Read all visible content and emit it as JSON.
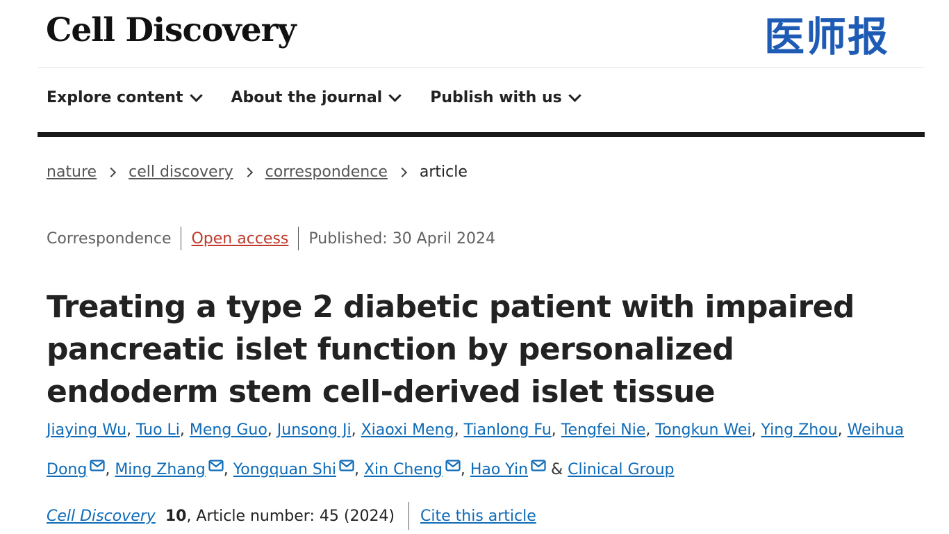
{
  "header": {
    "logo": "Cell Discovery",
    "watermark": "医师报"
  },
  "nav": {
    "items": [
      {
        "label": "Explore content"
      },
      {
        "label": "About the journal"
      },
      {
        "label": "Publish with us"
      }
    ]
  },
  "breadcrumb": {
    "items": [
      {
        "label": "nature"
      },
      {
        "label": "cell discovery"
      },
      {
        "label": "correspondence"
      }
    ],
    "current": "article"
  },
  "article": {
    "type": "Correspondence",
    "access": "Open access",
    "published": "Published: 30 April 2024",
    "title": "Treating a type 2 diabetic patient with impaired pancreatic islet function by personalized endoderm stem cell-derived islet tissue"
  },
  "authors": [
    {
      "name": "Jiaying Wu",
      "mail": false
    },
    {
      "name": "Tuo Li",
      "mail": false
    },
    {
      "name": "Meng Guo",
      "mail": false
    },
    {
      "name": "Junsong Ji",
      "mail": false
    },
    {
      "name": "Xiaoxi Meng",
      "mail": false
    },
    {
      "name": "Tianlong Fu",
      "mail": false
    },
    {
      "name": "Tengfei Nie",
      "mail": false
    },
    {
      "name": "Tongkun Wei",
      "mail": false
    },
    {
      "name": "Ying Zhou",
      "mail": false
    },
    {
      "name": "Weihua Dong",
      "mail": true
    },
    {
      "name": "Ming Zhang",
      "mail": true
    },
    {
      "name": "Yongquan Shi",
      "mail": true
    },
    {
      "name": "Xin Cheng",
      "mail": true
    },
    {
      "name": "Hao Yin",
      "mail": true
    }
  ],
  "authors_joiner": "&",
  "authors_group": "Clinical Group",
  "citation": {
    "journal": "Cell Discovery",
    "volume": "10",
    "article_number": ", Article number: 45 (2024)",
    "cite_label": "Cite this article"
  },
  "colors": {
    "link": "#0e6bb8",
    "open_access": "#c0392b",
    "watermark": "#1e5bb5"
  },
  "icons": {
    "nav_dropdown": "chevron-down-icon",
    "breadcrumb_separator": "chevron-right-icon",
    "author_contact": "mail-icon"
  }
}
